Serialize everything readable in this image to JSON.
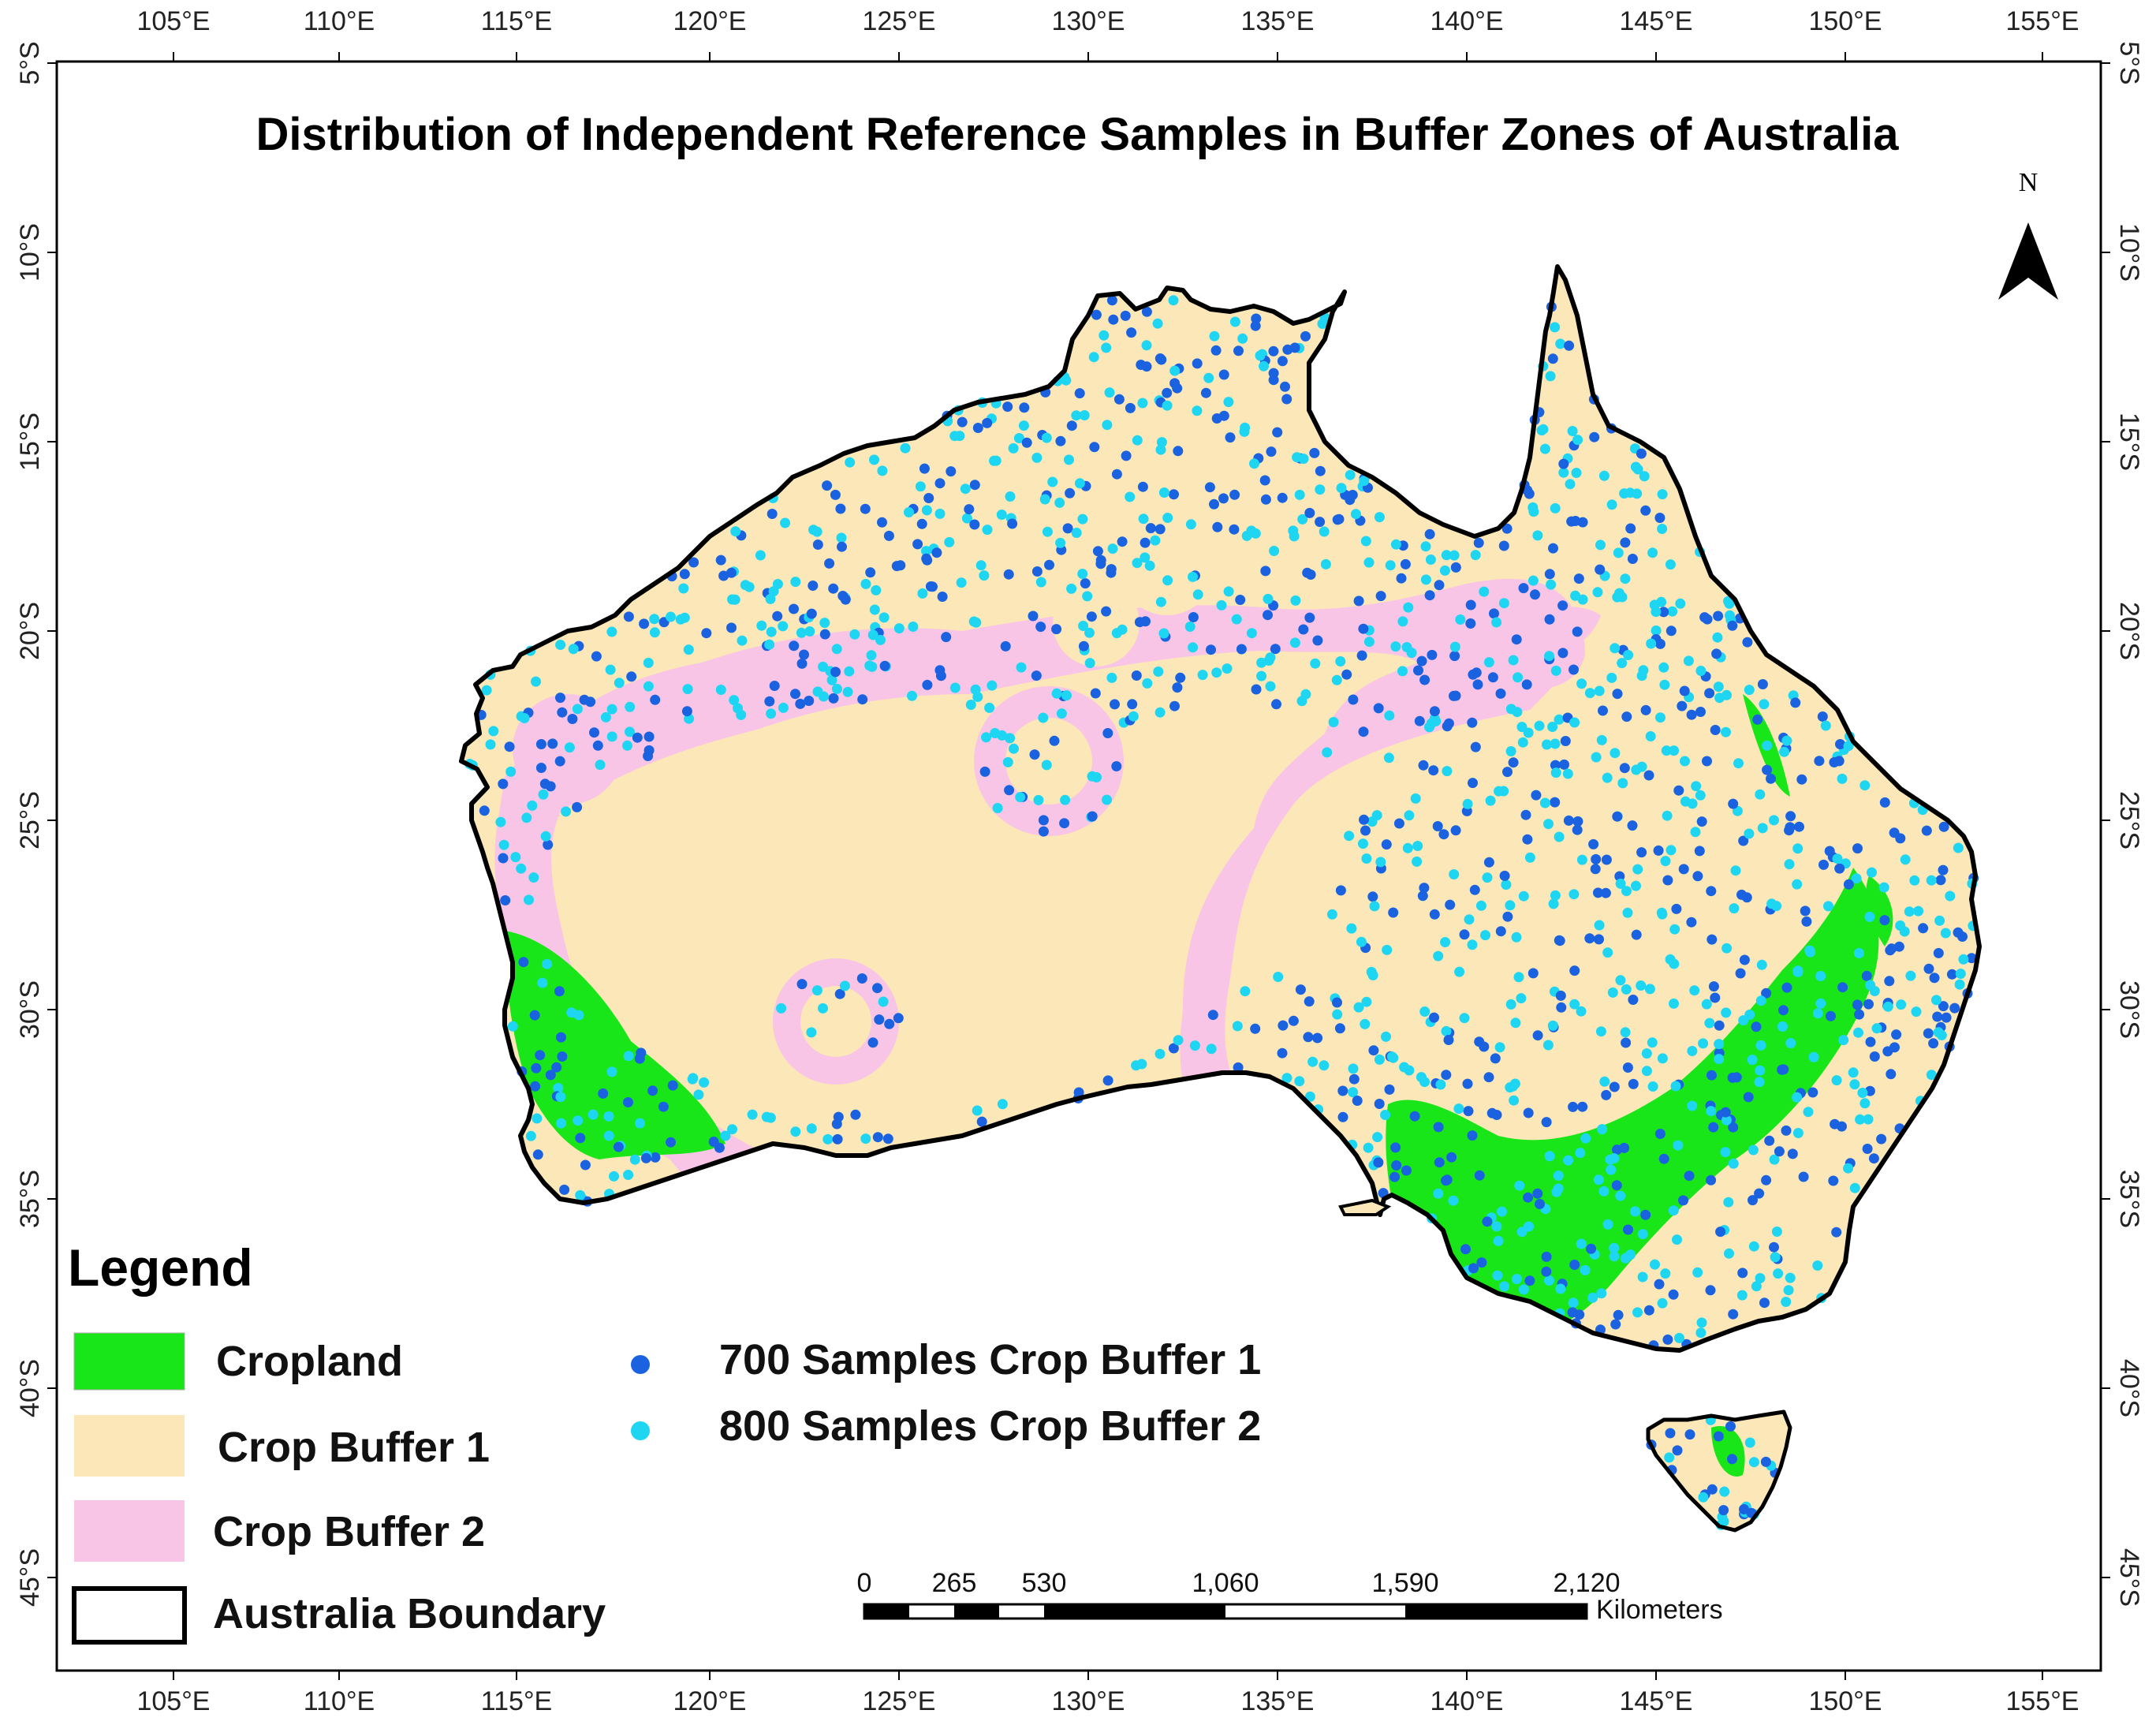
{
  "title": "Distribution of Independent Reference Samples in Buffer Zones of Australia",
  "north_arrow": {
    "label": "N"
  },
  "longitude_ticks": [
    "105°E",
    "110°E",
    "115°E",
    "120°E",
    "125°E",
    "130°E",
    "135°E",
    "140°E",
    "145°E",
    "150°E",
    "155°E"
  ],
  "latitude_ticks": [
    "5°S",
    "10°S",
    "15°S",
    "20°S",
    "25°S",
    "30°S",
    "35°S",
    "40°S",
    "45°S"
  ],
  "legend": {
    "title": "Legend",
    "items": [
      {
        "label": "Cropland",
        "color": "#19e619",
        "kind": "fill"
      },
      {
        "label": "Crop Buffer 1",
        "color": "#fbe7b8",
        "kind": "fill"
      },
      {
        "label": "Crop Buffer 2",
        "color": "#f9c5e6",
        "kind": "fill"
      },
      {
        "label": "Australia Boundary",
        "color": "#000000",
        "kind": "outline"
      }
    ],
    "samples": [
      {
        "label": "700 Samples Crop Buffer 1",
        "color": "#1a62e0"
      },
      {
        "label": "800 Samples Crop Buffer 2",
        "color": "#1ed6f2"
      }
    ]
  },
  "scale_bar": {
    "ticks": [
      "0",
      "265",
      "530",
      "1,060",
      "1,590",
      "2,120"
    ],
    "unit": "Kilometers"
  }
}
